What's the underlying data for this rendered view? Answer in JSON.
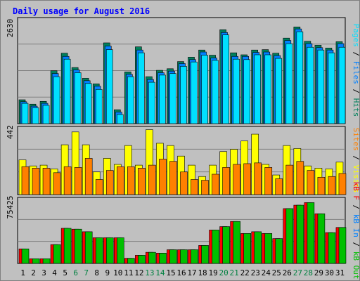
{
  "chart_data": {
    "type": "bar",
    "title": "Daily usage for August 2016",
    "categories": [
      "1",
      "2",
      "3",
      "4",
      "5",
      "6",
      "7",
      "8",
      "9",
      "10",
      "11",
      "12",
      "13",
      "14",
      "15",
      "16",
      "17",
      "18",
      "19",
      "20",
      "21",
      "22",
      "23",
      "24",
      "25",
      "26",
      "27",
      "28",
      "29",
      "30",
      "31"
    ],
    "weekend_days": [
      "6",
      "7",
      "13",
      "14",
      "20",
      "21",
      "27",
      "28"
    ],
    "panels": [
      {
        "id": "hits_files_pages",
        "max_label": "2630",
        "ylim": [
          0,
          2630
        ],
        "legend": [
          "Pages",
          "Files",
          "Hits"
        ],
        "series": [
          {
            "name": "Hits",
            "color": "#00805c",
            "values": [
              600,
              490,
              560,
              1330,
              1770,
              1410,
              1140,
              1000,
              2030,
              350,
              1300,
              1930,
              1180,
              1340,
              1380,
              1560,
              1670,
              1850,
              1720,
              2360,
              1780,
              1730,
              1850,
              1860,
              1770,
              2150,
              2430,
              2070,
              1970,
              1900,
              2060
            ]
          },
          {
            "name": "Files",
            "color": "#0080ff",
            "values": [
              550,
              440,
              510,
              1260,
              1690,
              1350,
              1080,
              940,
              1950,
              290,
              1240,
              1850,
              1110,
              1280,
              1320,
              1510,
              1610,
              1800,
              1650,
              2290,
              1690,
              1690,
              1790,
              1800,
              1710,
              2090,
              2380,
              2010,
              1910,
              1850,
              2010
            ]
          },
          {
            "name": "Pages",
            "color": "#00e0ff",
            "values": [
              510,
              400,
              460,
              1180,
              1620,
              1280,
              1010,
              860,
              1860,
              230,
              1180,
              1780,
              1040,
              1220,
              1260,
              1440,
              1550,
              1720,
              1590,
              2230,
              1620,
              1610,
              1730,
              1730,
              1640,
              2010,
              2310,
              1920,
              1850,
              1780,
              1920
            ]
          }
        ]
      },
      {
        "id": "visits_sites",
        "max_label": "442",
        "ylim": [
          0,
          442
        ],
        "legend": [
          "Sites",
          "Visits"
        ],
        "series": [
          {
            "name": "Visits",
            "color": "#ffff00",
            "values": [
              230,
              190,
              195,
              170,
              330,
              415,
              330,
              150,
              240,
              200,
              325,
              195,
              430,
              340,
              325,
              255,
              195,
              120,
              195,
              285,
              300,
              355,
              400,
              200,
              130,
              325,
              305,
              190,
              175,
              170,
              215
            ]
          },
          {
            "name": "Sites",
            "color": "#ff8000",
            "values": [
              185,
              175,
              175,
              145,
              185,
              180,
              240,
              100,
              160,
              185,
              185,
              175,
              195,
              235,
              220,
              150,
              100,
              95,
              135,
              180,
              200,
              205,
              210,
              180,
              105,
              195,
              220,
              160,
              115,
              120,
              140
            ]
          }
        ]
      },
      {
        "id": "kbytes_kbin_kbout",
        "max_label": "75425",
        "ylim": [
          0,
          75425
        ],
        "legend": [
          "kB F",
          "kB In",
          "kB Out"
        ],
        "series": [
          {
            "name": "kB F",
            "color": "#ff0000",
            "values": [
              17000,
              5500,
              5500,
              22000,
              41000,
              40000,
              37000,
              30000,
              30000,
              30000,
              6000,
              9500,
              13000,
              12000,
              16000,
              16000,
              16000,
              21000,
              39000,
              43000,
              49000,
              35000,
              37000,
              35000,
              29000,
              64000,
              68000,
              71000,
              58000,
              36000,
              42000
            ]
          },
          {
            "name": "kB Out",
            "color": "#00c000",
            "values": [
              17000,
              5500,
              5500,
              22000,
              41000,
              40000,
              37000,
              30000,
              30000,
              30000,
              6000,
              9500,
              13000,
              12000,
              16000,
              16000,
              16000,
              21000,
              39000,
              43000,
              49000,
              35000,
              37000,
              35000,
              29000,
              64000,
              68000,
              71000,
              58000,
              36000,
              42000
            ]
          }
        ]
      }
    ]
  },
  "colors": {
    "background": "#c0c0c0",
    "title": "#0000ff",
    "weekday_label": "#000000",
    "weekend_label": "#008040",
    "gridline": "#808080"
  }
}
